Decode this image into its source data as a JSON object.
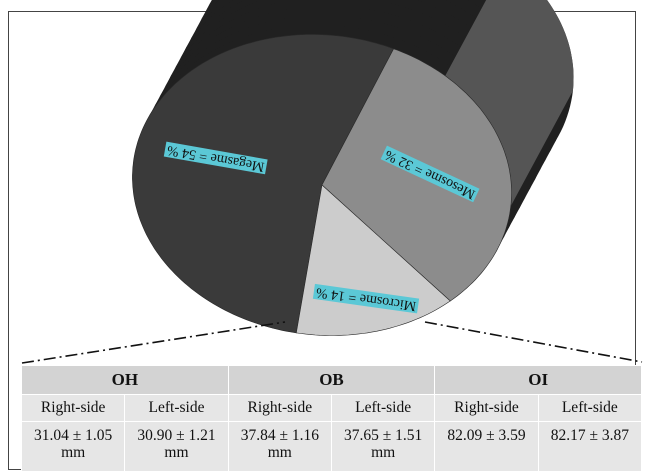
{
  "chart_data": {
    "type": "pie",
    "title": "",
    "slices": [
      {
        "label": "Megasme = 54 %",
        "value": 54,
        "color": "#3a3a3a"
      },
      {
        "label": "Mesosme = 32 %",
        "value": 32,
        "color": "#8c8c8c"
      },
      {
        "label": "Microsme = 14 %",
        "value": 14,
        "color": "#cccccc"
      }
    ],
    "label_box_color": "#5bc8d6",
    "rim_color": "#202020",
    "style": "3d",
    "legend": "none"
  },
  "table": {
    "groups": [
      "OH",
      "OB",
      "OI"
    ],
    "sides": [
      "Right-side",
      "Left-side",
      "Right-side",
      "Left-side",
      "Right-side",
      "Left-side"
    ],
    "values": [
      {
        "value": "31.04 ± 1.05",
        "unit": "mm"
      },
      {
        "value": "30.90 ± 1.21",
        "unit": "mm"
      },
      {
        "value": "37.84 ± 1.16",
        "unit": "mm"
      },
      {
        "value": "37.65 ± 1.51",
        "unit": "mm"
      },
      {
        "value": "82.09 ± 3.59",
        "unit": ""
      },
      {
        "value": "82.17 ± 3.87",
        "unit": ""
      }
    ]
  }
}
